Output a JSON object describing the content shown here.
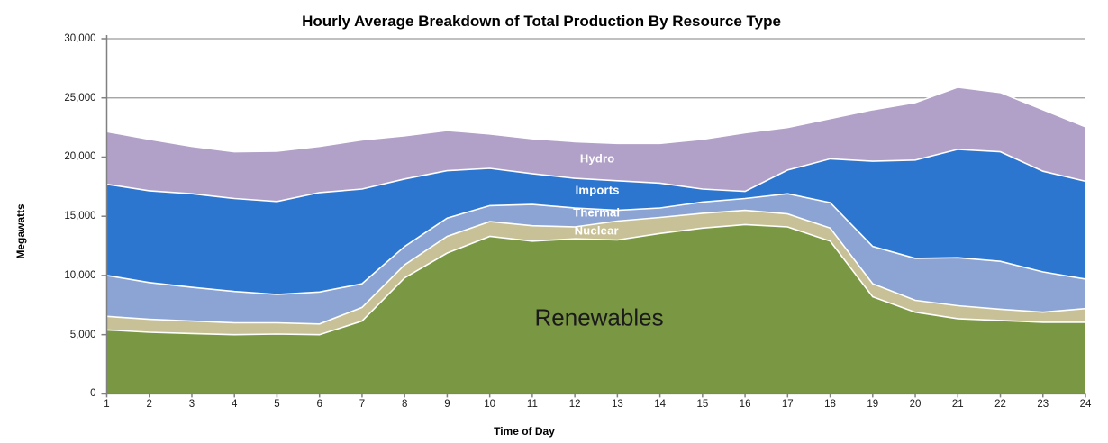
{
  "chart_data": {
    "type": "area",
    "stacked": true,
    "title": "Hourly Average Breakdown of Total Production By Resource Type",
    "xlabel": "Time of Day",
    "ylabel": "Megawatts",
    "x": [
      1,
      2,
      3,
      4,
      5,
      6,
      7,
      8,
      9,
      10,
      11,
      12,
      13,
      14,
      15,
      16,
      17,
      18,
      19,
      20,
      21,
      22,
      23,
      24
    ],
    "ylim": [
      0,
      30000
    ],
    "ytick_step": 5000,
    "yticks": [
      {
        "value": 0,
        "label": "0"
      },
      {
        "value": 5000,
        "label": "5,000"
      },
      {
        "value": 10000,
        "label": "10,000"
      },
      {
        "value": 15000,
        "label": "15,000"
      },
      {
        "value": 20000,
        "label": "20,000"
      },
      {
        "value": 25000,
        "label": "25,000"
      },
      {
        "value": 30000,
        "label": "30,000"
      }
    ],
    "grid": "horizontal",
    "legend": "in-plot-labels",
    "series": [
      {
        "name": "Renewables",
        "color": "#7A9843",
        "values": [
          5400,
          5200,
          5100,
          5000,
          5050,
          5000,
          6150,
          9800,
          11900,
          13300,
          12900,
          13100,
          13000,
          13550,
          14000,
          14300,
          14100,
          12900,
          8200,
          6900,
          6350,
          6200,
          6050,
          6050
        ]
      },
      {
        "name": "Nuclear",
        "color": "#C8C197",
        "values": [
          1150,
          1100,
          1050,
          1000,
          950,
          900,
          1150,
          1100,
          1400,
          1250,
          1300,
          1000,
          1600,
          1350,
          1250,
          1200,
          1100,
          1100,
          1100,
          1000,
          1100,
          950,
          850,
          1150
        ]
      },
      {
        "name": "Thermal",
        "color": "#8BA4D3",
        "values": [
          3450,
          3100,
          2850,
          2650,
          2400,
          2700,
          2000,
          1550,
          1550,
          1350,
          1800,
          1600,
          900,
          800,
          950,
          1000,
          1700,
          2150,
          3150,
          3550,
          4050,
          4050,
          3400,
          2500
        ]
      },
      {
        "name": "Imports",
        "color": "#2D76D0",
        "values": [
          7700,
          7750,
          7900,
          7850,
          7850,
          8400,
          8000,
          5700,
          4000,
          3150,
          2600,
          2500,
          2500,
          2100,
          1100,
          600,
          2000,
          3700,
          7200,
          8300,
          9150,
          9250,
          8500,
          8250
        ]
      },
      {
        "name": "Hydro",
        "color": "#B1A0C7",
        "values": [
          4450,
          4350,
          4000,
          3950,
          4250,
          3900,
          4150,
          3650,
          3400,
          2900,
          2950,
          3100,
          3150,
          3350,
          4200,
          4950,
          3600,
          3400,
          4350,
          4850,
          5250,
          5000,
          5200,
          4600
        ]
      }
    ],
    "series_labels": [
      {
        "text": "Hydro",
        "x": 12.53,
        "y": 19850,
        "color": "#ffffff",
        "size": "small"
      },
      {
        "text": "Imports",
        "x": 12.53,
        "y": 17200,
        "color": "#ffffff",
        "size": "small"
      },
      {
        "text": "Thermal",
        "x": 12.51,
        "y": 15320,
        "color": "#ffffff",
        "size": "small"
      },
      {
        "text": "Nuclear",
        "x": 12.51,
        "y": 13800,
        "color": "#ffffff",
        "size": "small"
      },
      {
        "text": "Renewables",
        "x": 12.57,
        "y": 6420,
        "color": "#1a1a1a",
        "size": "large"
      }
    ],
    "colors": {
      "grid": "#9a9a9a",
      "axis": "#808080",
      "separator": "#ffffff"
    }
  }
}
